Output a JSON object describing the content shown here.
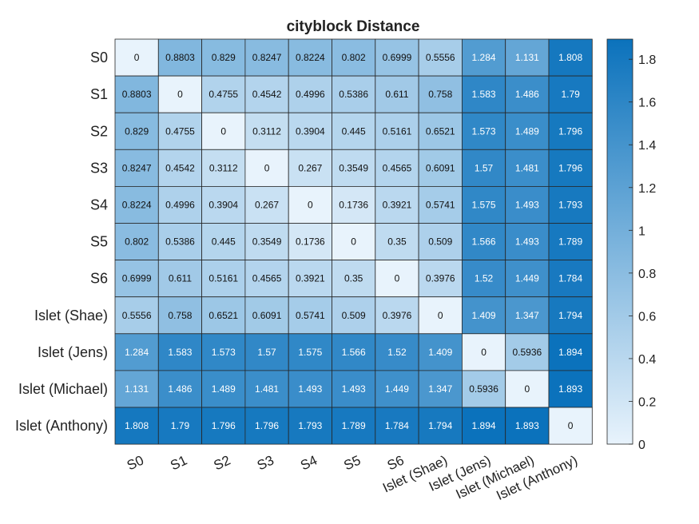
{
  "chart_data": {
    "type": "heatmap",
    "title": "cityblock Distance",
    "labels": [
      "S0",
      "S1",
      "S2",
      "S3",
      "S4",
      "S5",
      "S6",
      "Islet (Shae)",
      "Islet (Jens)",
      "Islet (Michael)",
      "Islet (Anthony)"
    ],
    "values": [
      [
        "0",
        "0.8803",
        "0.829",
        "0.8247",
        "0.8224",
        "0.802",
        "0.6999",
        "0.5556",
        "1.284",
        "1.131",
        "1.808"
      ],
      [
        "0.8803",
        "0",
        "0.4755",
        "0.4542",
        "0.4996",
        "0.5386",
        "0.611",
        "0.758",
        "1.583",
        "1.486",
        "1.79"
      ],
      [
        "0.829",
        "0.4755",
        "0",
        "0.3112",
        "0.3904",
        "0.445",
        "0.5161",
        "0.6521",
        "1.573",
        "1.489",
        "1.796"
      ],
      [
        "0.8247",
        "0.4542",
        "0.3112",
        "0",
        "0.267",
        "0.3549",
        "0.4565",
        "0.6091",
        "1.57",
        "1.481",
        "1.796"
      ],
      [
        "0.8224",
        "0.4996",
        "0.3904",
        "0.267",
        "0",
        "0.1736",
        "0.3921",
        "0.5741",
        "1.575",
        "1.493",
        "1.793"
      ],
      [
        "0.802",
        "0.5386",
        "0.445",
        "0.3549",
        "0.1736",
        "0",
        "0.35",
        "0.509",
        "1.566",
        "1.493",
        "1.789"
      ],
      [
        "0.6999",
        "0.611",
        "0.5161",
        "0.4565",
        "0.3921",
        "0.35",
        "0",
        "0.3976",
        "1.52",
        "1.449",
        "1.784"
      ],
      [
        "0.5556",
        "0.758",
        "0.6521",
        "0.6091",
        "0.5741",
        "0.509",
        "0.3976",
        "0",
        "1.409",
        "1.347",
        "1.794"
      ],
      [
        "1.284",
        "1.583",
        "1.573",
        "1.57",
        "1.575",
        "1.566",
        "1.52",
        "1.409",
        "0",
        "0.5936",
        "1.894"
      ],
      [
        "1.131",
        "1.486",
        "1.489",
        "1.481",
        "1.493",
        "1.493",
        "1.449",
        "1.347",
        "0.5936",
        "0",
        "1.893"
      ],
      [
        "1.808",
        "1.79",
        "1.796",
        "1.796",
        "1.793",
        "1.789",
        "1.784",
        "1.794",
        "1.894",
        "1.893",
        "0"
      ]
    ],
    "colorbar": {
      "ticks": [
        "0",
        "0.2",
        "0.4",
        "0.6",
        "0.8",
        "1",
        "1.2",
        "1.4",
        "1.6",
        "1.8"
      ],
      "min": 0,
      "max": 1.894
    },
    "colors": {
      "low": "#e8f3fc",
      "high": "#0b72bc"
    }
  }
}
